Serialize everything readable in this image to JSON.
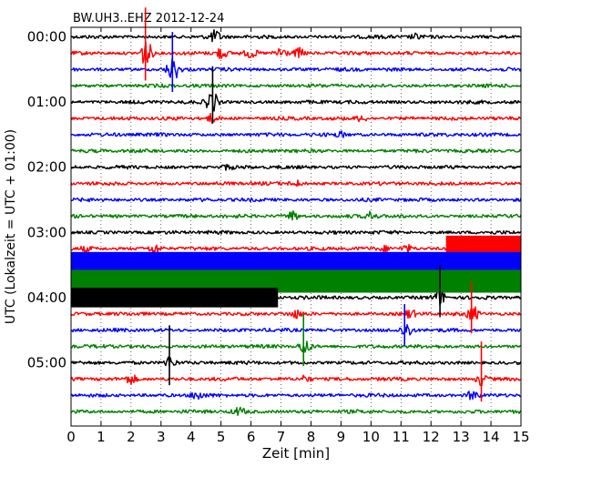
{
  "chart_data": {
    "type": "line",
    "title": "BW.UH3..EHZ 2012-12-24",
    "xlabel": "Zeit  [min]",
    "ylabel": "UTC (Lokalzeit = UTC + 01:00)",
    "xlim": [
      0,
      15
    ],
    "x_ticks": [
      "0",
      "1",
      "2",
      "3",
      "4",
      "5",
      "6",
      "7",
      "8",
      "9",
      "10",
      "11",
      "12",
      "13",
      "14",
      "15"
    ],
    "y_ticks": [
      "00:00",
      "01:00",
      "02:00",
      "03:00",
      "04:00",
      "05:00"
    ],
    "grid": "vertical dotted",
    "trace_interval_minutes": 15,
    "trace_count": 24,
    "color_cycle": [
      "#000000",
      "#ff0000",
      "#0000ff",
      "#008000"
    ],
    "events": [
      {
        "trace": 0,
        "t": 4.8,
        "amp": 1.2
      },
      {
        "trace": 0,
        "t": 11.5,
        "amp": 0.5
      },
      {
        "trace": 1,
        "t": 2.5,
        "amp": 3.0
      },
      {
        "trace": 1,
        "t": 5.0,
        "amp": 1.2
      },
      {
        "trace": 1,
        "t": 6.0,
        "amp": 0.9
      },
      {
        "trace": 1,
        "t": 7.0,
        "amp": 1.4
      },
      {
        "trace": 1,
        "t": 7.6,
        "amp": 1.0
      },
      {
        "trace": 2,
        "t": 3.4,
        "amp": 2.5
      },
      {
        "trace": 4,
        "t": 4.7,
        "amp": 2.4
      },
      {
        "trace": 5,
        "t": 4.7,
        "amp": 0.9
      },
      {
        "trace": 5,
        "t": 9.7,
        "amp": 0.6
      },
      {
        "trace": 6,
        "t": 9.0,
        "amp": 0.5
      },
      {
        "trace": 8,
        "t": 5.2,
        "amp": 0.4
      },
      {
        "trace": 9,
        "t": 7.5,
        "amp": 0.6
      },
      {
        "trace": 11,
        "t": 7.4,
        "amp": 1.0
      },
      {
        "trace": 11,
        "t": 10.0,
        "amp": 0.9
      },
      {
        "trace": 13,
        "t": 0.5,
        "amp": 0.5
      },
      {
        "trace": 13,
        "t": 2.8,
        "amp": 1.0
      },
      {
        "trace": 13,
        "t": 10.5,
        "amp": 0.5
      },
      {
        "trace": 13,
        "t": 11.2,
        "amp": 0.8
      },
      {
        "trace": 14,
        "t": 11.3,
        "amp": 0.7
      },
      {
        "trace": 16,
        "t": 1.1,
        "amp": 0.6
      },
      {
        "trace": 16,
        "t": 12.3,
        "amp": 1.6
      },
      {
        "trace": 17,
        "t": 7.5,
        "amp": 0.7
      },
      {
        "trace": 17,
        "t": 11.3,
        "amp": 0.8
      },
      {
        "trace": 17,
        "t": 13.4,
        "amp": 1.5
      },
      {
        "trace": 18,
        "t": 11.2,
        "amp": 1.5
      },
      {
        "trace": 19,
        "t": 7.8,
        "amp": 1.6
      },
      {
        "trace": 20,
        "t": 3.3,
        "amp": 1.3
      },
      {
        "trace": 21,
        "t": 2.0,
        "amp": 1.0
      },
      {
        "trace": 21,
        "t": 7.8,
        "amp": 0.7
      },
      {
        "trace": 21,
        "t": 13.7,
        "amp": 1.3
      },
      {
        "trace": 22,
        "t": 4.2,
        "amp": 0.9
      },
      {
        "trace": 22,
        "t": 13.4,
        "amp": 1.0
      },
      {
        "trace": 23,
        "t": 5.6,
        "amp": 0.8
      }
    ],
    "spikes": [
      {
        "trace": 1,
        "t": 2.48,
        "amp": 2.8
      },
      {
        "trace": 2,
        "t": 3.38,
        "amp": 2.3
      },
      {
        "trace": 4,
        "t": 4.72,
        "amp": 2.2
      },
      {
        "trace": 16,
        "t": 12.3,
        "amp": 2.0
      },
      {
        "trace": 17,
        "t": 13.35,
        "amp": 2.0
      },
      {
        "trace": 18,
        "t": 11.12,
        "amp": 1.6
      },
      {
        "trace": 19,
        "t": 7.75,
        "amp": 2.0
      },
      {
        "trace": 20,
        "t": 3.28,
        "amp": 2.3
      },
      {
        "trace": 21,
        "t": 13.68,
        "amp": 2.3
      }
    ],
    "saturated_blocks": [
      {
        "trace": 13,
        "color": "#ff0000",
        "t_start": 12.5,
        "t_end": 15,
        "amp": 1.6
      },
      {
        "trace": 14,
        "color": "#0000ff",
        "t_start": 0,
        "t_end": 15,
        "amp": 1.6
      },
      {
        "trace": 15,
        "color": "#008000",
        "t_start": 0,
        "t_end": 15,
        "amp": 1.4
      },
      {
        "trace": 16,
        "color": "#000000",
        "t_start": 0,
        "t_end": 6.9,
        "amp": 1.2
      }
    ]
  }
}
